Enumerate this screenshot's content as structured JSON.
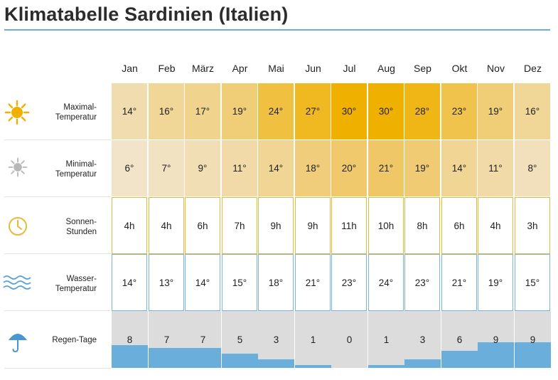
{
  "page": {
    "title": "Klimatabelle Sardinien (Italien)"
  },
  "colors": {
    "max_low": "#f0dcae",
    "max_high": "#f0b000",
    "min_low": "#f1e4c8",
    "min_high": "#f0c766",
    "sun_border": "#e8b93a",
    "water_border": "#7ab6dc",
    "rain_blue": "#6aaedc",
    "rain_grey": "#dcdcdc"
  },
  "rows": {
    "max": {
      "label_1": "Maximal-",
      "label_2": "Temperatur",
      "icon": "sun-icon"
    },
    "min": {
      "label_1": "Minimal-",
      "label_2": "Temperatur",
      "icon": "grey-sun-icon"
    },
    "sun": {
      "label_1": "Sonnen-",
      "label_2": "Stunden",
      "icon": "clock-icon"
    },
    "water": {
      "label_1": "Wasser-",
      "label_2": "Temperatur",
      "icon": "waves-icon"
    },
    "rain": {
      "label_1": "Regen-Tage",
      "icon": "umbrella-icon"
    }
  },
  "chart_data": {
    "type": "table",
    "title": "Klimatabelle Sardinien (Italien)",
    "categories": [
      "Jan",
      "Feb",
      "März",
      "Apr",
      "Mai",
      "Jun",
      "Jul",
      "Aug",
      "Sep",
      "Okt",
      "Nov",
      "Dez"
    ],
    "series": [
      {
        "name": "Maximal-Temperatur",
        "unit": "°",
        "values": [
          14,
          16,
          17,
          19,
          24,
          27,
          30,
          30,
          28,
          23,
          19,
          16
        ]
      },
      {
        "name": "Minimal-Temperatur",
        "unit": "°",
        "values": [
          6,
          7,
          9,
          11,
          14,
          18,
          20,
          21,
          19,
          14,
          11,
          8
        ]
      },
      {
        "name": "Sonnen-Stunden",
        "unit": "h",
        "values": [
          4,
          4,
          6,
          7,
          9,
          9,
          11,
          10,
          8,
          6,
          4,
          3
        ]
      },
      {
        "name": "Wasser-Temperatur",
        "unit": "°",
        "values": [
          14,
          13,
          14,
          15,
          18,
          21,
          23,
          24,
          23,
          21,
          19,
          15
        ]
      },
      {
        "name": "Regen-Tage",
        "unit": "",
        "values": [
          8,
          7,
          7,
          5,
          3,
          1,
          0,
          1,
          3,
          6,
          9,
          9
        ]
      }
    ]
  }
}
